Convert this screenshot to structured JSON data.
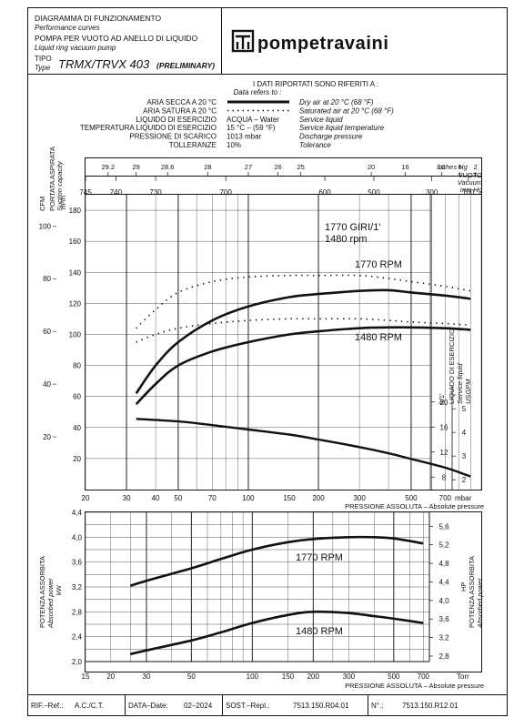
{
  "header": {
    "line1_it": "DIAGRAMMA DI FUNZIONAMENTO",
    "line1_en": "Performance curves",
    "line2_it": "POMPA PER VUOTO AD ANELLO DI LIQUIDO",
    "line2_en": "Liquid ring vacuum pump",
    "type_label_it": "TIPO",
    "type_label_en": "Type",
    "model": "TRMX/TRVX 403",
    "model_note": "(PRELIMINARY)",
    "brand": "pompetravaini"
  },
  "reference": {
    "title_it": "I DATI RIPORTATI SONO RIFERITI A :",
    "title_en": "Data refers to :",
    "rows": [
      {
        "it": "ARIA SECCA A 20 °C",
        "val": "",
        "en": "Dry air at 20 °C (68 °F)"
      },
      {
        "it": "ARIA SATURA A 20 °C",
        "val": "",
        "en": "Saturated air at 20 °C (68 °F)"
      },
      {
        "it": "LIQUIDO DI ESERCIZIO",
        "val": "ACQUA – Water",
        "en": "Service liquid"
      },
      {
        "it": "TEMPERATURA LIQUIDO DI ESERCIZIO",
        "val": "15 °C – (59 °F)",
        "en": "Service liquid temperature"
      },
      {
        "it": "PRESSIONE DI SCARICO",
        "val": "1013 mbar",
        "en": "Discharge pressure"
      },
      {
        "it": "TOLLERANZE",
        "val": "10%",
        "en": "Tolerance"
      }
    ]
  },
  "colors": {
    "ink": "#111111",
    "grid": "#222222"
  },
  "chart_data": [
    {
      "type": "line",
      "title": "",
      "x_scale": "log",
      "xlim": [
        20,
        1000
      ],
      "x_ticks": [
        20,
        30,
        40,
        50,
        70,
        100,
        150,
        200,
        300,
        500,
        700,
        1000
      ],
      "x_tick_labels": [
        "20",
        "30",
        "40",
        "50",
        "70",
        "100",
        "150",
        "200",
        "300",
        "500",
        "700",
        "1000"
      ],
      "x_unit": "mbar",
      "xlabel": "PRESSIONE ASSOLUTA – Absolute pressure",
      "ylim": [
        0,
        190
      ],
      "y_ticks": [
        20,
        40,
        60,
        80,
        100,
        120,
        140,
        160,
        180
      ],
      "ylabel_unit": "m³/h",
      "left_cfm_axis": {
        "label": "CFM",
        "ticks": [
          20,
          40,
          60,
          80,
          100
        ]
      },
      "left_axis_label_it": "PORTATA ASPIRATA",
      "left_axis_label_en": "Suction capacity",
      "right_axis_label_it": "LIQUIDO DI ESERCIZIO",
      "right_axis_label_en": "Service liquid",
      "right_axis_unit": "lt/1'",
      "right_axis_unit2": "USGPM",
      "right_lt_ticks": [
        8,
        12,
        16,
        20
      ],
      "right_usgpm_ticks": [
        2,
        3,
        4,
        5
      ],
      "top_axis_hg": {
        "label_en": "Inches Hg",
        "ticks": [
          "29.2",
          "29",
          "28.6",
          "28",
          "27",
          "26",
          "25",
          "20",
          "16",
          "10",
          "6",
          "2"
        ],
        "positions_mbar": [
          25,
          33,
          45,
          67,
          100,
          134,
          168,
          337,
          472,
          675,
          810,
          945
        ]
      },
      "top_axis_mmhg": {
        "label_it": "VUOTO",
        "label_en": "Vacuum",
        "unit": "mm Hg",
        "ticks": [
          "745",
          "740",
          "730",
          "700",
          "600",
          "500",
          "300",
          "100"
        ],
        "positions_mbar": [
          20,
          27,
          40,
          80,
          213,
          346,
          613,
          880
        ]
      },
      "speed_label_it": "1770 GIRI/1'",
      "speed_label_en": "1480 rpm",
      "series": [
        {
          "name": "1770 RPM",
          "style": "solid",
          "x": [
            33,
            40,
            50,
            70,
            100,
            150,
            200,
            300,
            400,
            500,
            700,
            900
          ],
          "y": [
            62,
            80,
            95,
            109,
            118,
            124,
            126,
            128,
            128.5,
            127,
            125,
            123
          ]
        },
        {
          "name": "",
          "style": "dotted",
          "x": [
            33,
            40,
            50,
            70,
            100,
            150,
            200,
            300,
            400,
            500,
            700,
            900
          ],
          "y": [
            104,
            116,
            127,
            134,
            137,
            138,
            138,
            138,
            136,
            134,
            131,
            128
          ]
        },
        {
          "name": "1480 RPM",
          "style": "solid",
          "x": [
            33,
            40,
            50,
            70,
            100,
            150,
            200,
            300,
            400,
            500,
            700,
            900
          ],
          "y": [
            55,
            68,
            80,
            89,
            95,
            100,
            102,
            104,
            104.5,
            104.5,
            104,
            103
          ]
        },
        {
          "name": "",
          "style": "dotted",
          "x": [
            33,
            40,
            50,
            70,
            100,
            150,
            200,
            300,
            400,
            500,
            700,
            900
          ],
          "y": [
            95,
            100,
            104,
            107,
            109,
            110,
            110,
            110,
            109,
            108,
            107,
            106
          ]
        },
        {
          "name": "Service liquid",
          "style": "solid",
          "axis": "right_lt",
          "x": [
            33,
            50,
            70,
            100,
            150,
            200,
            300,
            400,
            500,
            700,
            900
          ],
          "y": [
            17.3,
            16.9,
            16.3,
            15.6,
            14.8,
            14.0,
            12.8,
            11.8,
            10.9,
            9.5,
            8.1
          ]
        }
      ]
    },
    {
      "type": "line",
      "title": "",
      "x_scale": "log",
      "xlim": [
        15,
        750
      ],
      "x_ticks": [
        15,
        20,
        30,
        50,
        100,
        150,
        200,
        300,
        500,
        700
      ],
      "x_tick_labels": [
        "15",
        "20",
        "30",
        "50",
        "100",
        "150",
        "200",
        "300",
        "500",
        "700"
      ],
      "x_unit": "Torr",
      "xlabel": "PRESSIONE ASSOLUTA – Absolute pressure",
      "ylim": [
        2.0,
        4.4
      ],
      "y_ticks": [
        2.0,
        2.4,
        2.8,
        3.2,
        3.6,
        4.0,
        4.4
      ],
      "y_tick_labels": [
        "2,0",
        "2,4",
        "2,8",
        "3,2",
        "3,6",
        "4,0",
        "4,4"
      ],
      "ylabel_unit": "kW",
      "ylabel_it": "POTENZA ASSORBITA",
      "ylabel_en": "Absorbed power",
      "right_hp_axis": {
        "label": "HP",
        "ticks": [
          "2,8",
          "3,2",
          "3,6",
          "4,0",
          "4,4",
          "4,8",
          "5,2",
          "5,6"
        ]
      },
      "series": [
        {
          "name": "1770 RPM",
          "style": "solid",
          "x": [
            25,
            30,
            50,
            70,
            100,
            150,
            200,
            300,
            400,
            500,
            700
          ],
          "y": [
            3.22,
            3.3,
            3.5,
            3.65,
            3.8,
            3.92,
            3.97,
            4.0,
            4.0,
            3.98,
            3.9
          ]
        },
        {
          "name": "1480 RPM",
          "style": "solid",
          "x": [
            25,
            30,
            50,
            70,
            100,
            150,
            200,
            300,
            400,
            500,
            700
          ],
          "y": [
            2.12,
            2.18,
            2.34,
            2.47,
            2.62,
            2.75,
            2.8,
            2.78,
            2.73,
            2.69,
            2.62
          ]
        }
      ]
    }
  ],
  "footer": {
    "ref_label": "RIF.–Ref.:",
    "ref_value": "A.C./C.T.",
    "date_label": "DATA–Date:",
    "date_value": "02–2024",
    "sost_label": "SOST.–Repl.:",
    "sost_value": "7513.150.R04.01",
    "n_label": "N°.:",
    "n_value": "7513.150.R12.01"
  }
}
